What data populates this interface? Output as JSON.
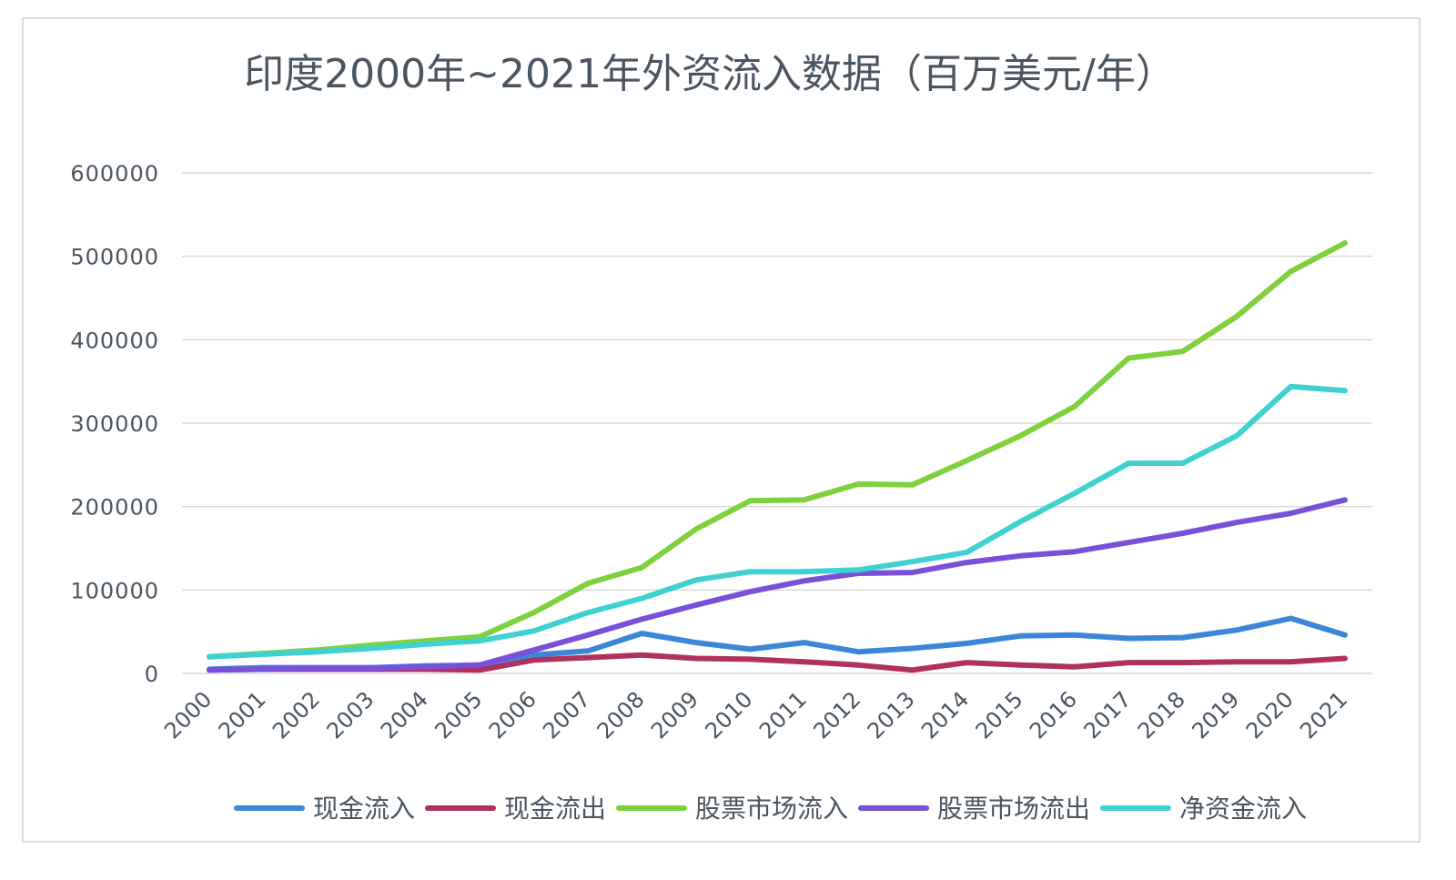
{
  "chart_data": {
    "type": "line",
    "title": "印度2000年~2021年外资流入数据（百万美元/年）",
    "xlabel": "",
    "ylabel": "",
    "categories": [
      "2000",
      "2001",
      "2002",
      "2003",
      "2004",
      "2005",
      "2006",
      "2007",
      "2008",
      "2009",
      "2010",
      "2011",
      "2012",
      "2013",
      "2014",
      "2015",
      "2016",
      "2017",
      "2018",
      "2019",
      "2020",
      "2021"
    ],
    "yticks": [
      "0",
      "100000",
      "200000",
      "300000",
      "400000",
      "500000",
      "600000"
    ],
    "ylim": [
      0,
      600000
    ],
    "grid": true,
    "legend_position": "bottom",
    "series": [
      {
        "name": "现金流入",
        "color": "#3b86d8",
        "values": [
          5000,
          7000,
          7000,
          7000,
          9000,
          10000,
          22000,
          27000,
          48000,
          37000,
          29000,
          37000,
          26000,
          30000,
          36000,
          45000,
          46000,
          42000,
          43000,
          52000,
          66000,
          46000
        ]
      },
      {
        "name": "现金流出",
        "color": "#b0315c",
        "values": [
          4000,
          5000,
          5000,
          5000,
          5000,
          4000,
          16000,
          19000,
          22000,
          18000,
          17000,
          14000,
          10000,
          4000,
          13000,
          10000,
          8000,
          13000,
          13000,
          14000,
          14000,
          18000
        ]
      },
      {
        "name": "股票市场流入",
        "color": "#7ed13c",
        "values": [
          20000,
          24000,
          28000,
          34000,
          39000,
          44000,
          73000,
          108000,
          127000,
          173000,
          207000,
          208000,
          227000,
          226000,
          255000,
          285000,
          320000,
          378000,
          386000,
          428000,
          482000,
          516000
        ]
      },
      {
        "name": "股票市场流出",
        "color": "#7a4fd9",
        "values": [
          4000,
          5000,
          6000,
          6000,
          8000,
          10000,
          28000,
          46000,
          65000,
          82000,
          98000,
          111000,
          120000,
          121000,
          133000,
          141000,
          146000,
          157000,
          168000,
          181000,
          192000,
          208000
        ]
      },
      {
        "name": "净资金流入",
        "color": "#3fd1d1",
        "values": [
          20000,
          23000,
          26000,
          30000,
          35000,
          39000,
          51000,
          73000,
          90000,
          112000,
          122000,
          122000,
          124000,
          134000,
          145000,
          182000,
          216000,
          252000,
          252000,
          285000,
          344000,
          339000
        ]
      }
    ]
  }
}
